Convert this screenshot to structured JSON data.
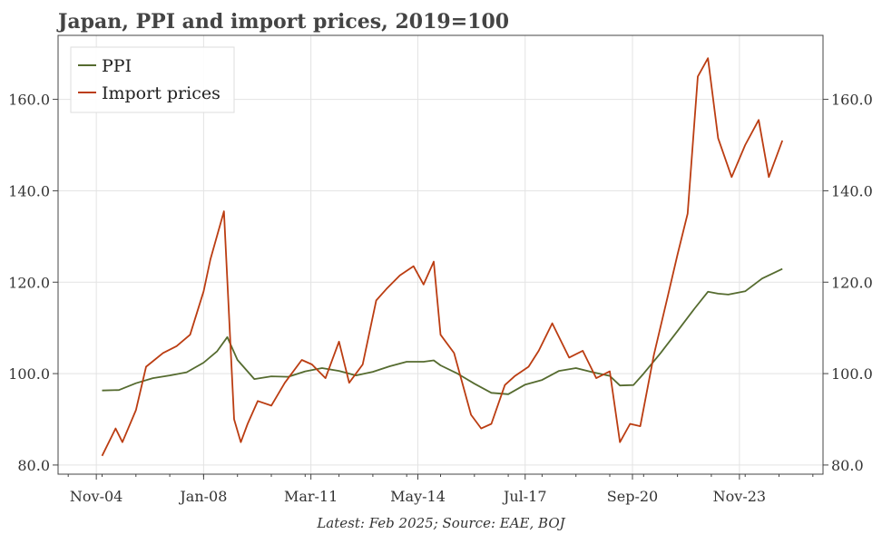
{
  "chart_data": {
    "type": "line",
    "title": "Japan, PPI and import prices, 2019=100",
    "source": "Latest: Feb 2025; Source: EAE, BOJ",
    "xlabel": "",
    "ylabel": "",
    "ylim": [
      78,
      174
    ],
    "xlim": [
      2003.7,
      2026.3
    ],
    "y_ticks": [
      80,
      100,
      120,
      140,
      160
    ],
    "y_tick_labels": [
      "80.0",
      "100.0",
      "120.0",
      "140.0",
      "160.0"
    ],
    "x_ticks": [
      2004.83,
      2008.0,
      2011.17,
      2014.33,
      2017.5,
      2020.67,
      2023.83
    ],
    "x_tick_labels": [
      "Nov-04",
      "Jan-08",
      "Mar-11",
      "May-14",
      "Jul-17",
      "Sep-20",
      "Nov-23"
    ],
    "legend_position": "top-left",
    "grid": true,
    "colors": {
      "ppi": "#556b2f",
      "import": "#bb3d12"
    },
    "series": [
      {
        "name": "PPI",
        "x": [
          2005.0,
          2005.5,
          2006.0,
          2006.5,
          2007.0,
          2007.5,
          2008.0,
          2008.4,
          2008.7,
          2009.0,
          2009.5,
          2010.0,
          2010.5,
          2011.0,
          2011.5,
          2012.0,
          2012.5,
          2013.0,
          2013.5,
          2014.0,
          2014.5,
          2014.8,
          2015.0,
          2015.5,
          2016.0,
          2016.5,
          2017.0,
          2017.5,
          2018.0,
          2018.5,
          2019.0,
          2019.5,
          2020.0,
          2020.3,
          2020.7,
          2021.0,
          2021.5,
          2022.0,
          2022.5,
          2022.9,
          2023.2,
          2023.5,
          2024.0,
          2024.5,
          2025.1
        ],
        "y": [
          96.3,
          96.4,
          97.9,
          99.0,
          99.6,
          100.3,
          102.4,
          104.9,
          108.0,
          103.0,
          98.8,
          99.4,
          99.3,
          100.5,
          101.2,
          100.6,
          99.6,
          100.4,
          101.6,
          102.6,
          102.6,
          102.9,
          101.8,
          100.0,
          97.8,
          95.8,
          95.5,
          97.6,
          98.6,
          100.6,
          101.2,
          100.3,
          99.5,
          97.4,
          97.5,
          100.0,
          104.5,
          109.3,
          114.2,
          117.9,
          117.5,
          117.3,
          118.0,
          120.8,
          122.9
        ]
      },
      {
        "name": "Import prices",
        "x": [
          2005.0,
          2005.4,
          2005.6,
          2006.0,
          2006.3,
          2006.8,
          2007.2,
          2007.6,
          2008.0,
          2008.2,
          2008.6,
          2008.9,
          2009.1,
          2009.3,
          2009.6,
          2010.0,
          2010.4,
          2010.9,
          2011.2,
          2011.6,
          2012.0,
          2012.3,
          2012.7,
          2013.1,
          2013.4,
          2013.8,
          2014.2,
          2014.5,
          2014.8,
          2015.0,
          2015.4,
          2015.9,
          2016.2,
          2016.5,
          2016.9,
          2017.2,
          2017.6,
          2017.9,
          2018.3,
          2018.8,
          2019.2,
          2019.6,
          2020.0,
          2020.3,
          2020.6,
          2020.9,
          2021.3,
          2021.7,
          2022.0,
          2022.3,
          2022.6,
          2022.9,
          2023.2,
          2023.6,
          2024.0,
          2024.4,
          2024.7,
          2025.1
        ],
        "y": [
          82.0,
          88.0,
          85.0,
          92.0,
          101.5,
          104.5,
          106.0,
          108.5,
          118.0,
          125.0,
          135.5,
          90.0,
          85.0,
          89.0,
          94.0,
          93.0,
          98.0,
          103.0,
          102.0,
          99.0,
          107.0,
          98.0,
          102.0,
          116.0,
          118.5,
          121.5,
          123.5,
          119.5,
          124.5,
          108.5,
          104.5,
          91.0,
          88.0,
          89.0,
          97.5,
          99.5,
          101.5,
          105.0,
          111.0,
          103.5,
          105.0,
          99.0,
          100.5,
          85.0,
          89.0,
          88.5,
          104.0,
          116.5,
          126.0,
          135.0,
          165.0,
          169.0,
          151.5,
          143.0,
          150.0,
          155.5,
          143.0,
          151.0
        ]
      }
    ]
  }
}
